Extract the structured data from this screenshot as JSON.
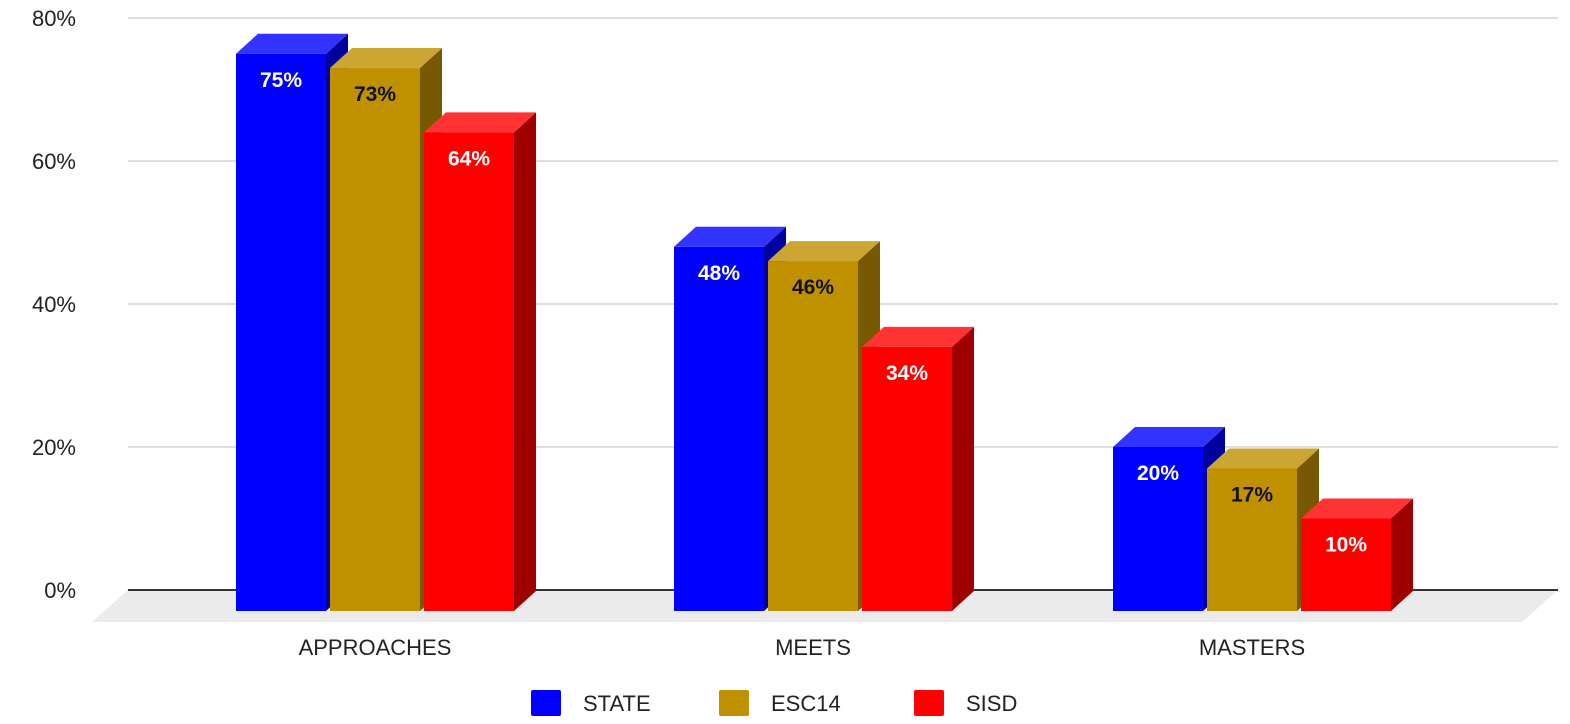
{
  "chart_data": {
    "type": "bar",
    "title": "",
    "xlabel": "",
    "ylabel": "",
    "categories": [
      "APPROACHES",
      "MEETS",
      "MASTERS"
    ],
    "series": [
      {
        "name": "STATE",
        "values": [
          75,
          48,
          20
        ],
        "labels": [
          "75%",
          "48%",
          "20%"
        ],
        "color": "#0000ff",
        "label_color": "#ffffff"
      },
      {
        "name": "ESC14",
        "values": [
          73,
          46,
          17
        ],
        "labels": [
          "73%",
          "46%",
          "17%"
        ],
        "color": "#bf9000",
        "label_color": "#111111"
      },
      {
        "name": "SISD",
        "values": [
          64,
          34,
          10
        ],
        "labels": [
          "64%",
          "34%",
          "10%"
        ],
        "color": "#ff0000",
        "label_color": "#ffffff"
      }
    ],
    "ylim": [
      0,
      80
    ],
    "yticks": [
      {
        "value": 0,
        "label": "0%"
      },
      {
        "value": 20,
        "label": "20%"
      },
      {
        "value": 40,
        "label": "40%"
      },
      {
        "value": 60,
        "label": "60%"
      },
      {
        "value": 80,
        "label": "80%"
      }
    ],
    "grid": true,
    "style": "3d",
    "legend": "bottom-center"
  }
}
